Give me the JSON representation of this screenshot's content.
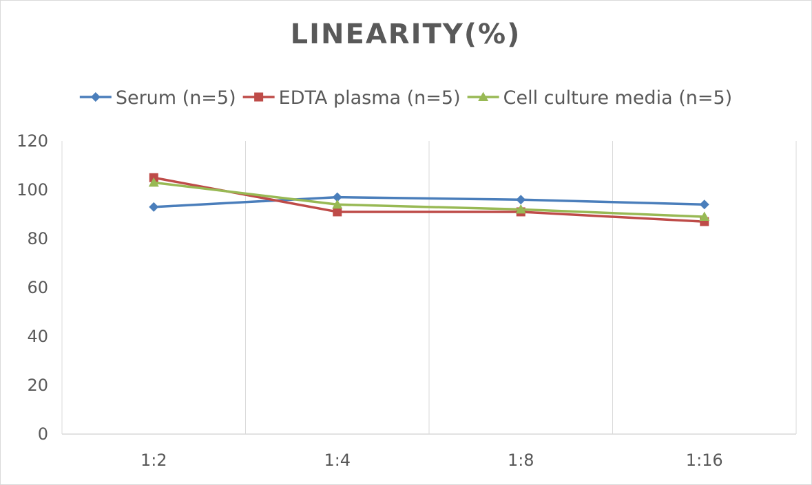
{
  "chart_data": {
    "type": "line",
    "title": "LINEARITY(%)",
    "xlabel": "",
    "ylabel": "",
    "categories": [
      "1:2",
      "1:4",
      "1:8",
      "1:16"
    ],
    "ylim": [
      0,
      120
    ],
    "yticks": [
      0,
      20,
      40,
      60,
      80,
      100,
      120
    ],
    "grid": "vertical",
    "legend_position": "top",
    "series": [
      {
        "name": "Serum (n=5)",
        "values": [
          93,
          97,
          96,
          94
        ],
        "color": "#4a7ebb",
        "marker": "diamond"
      },
      {
        "name": "EDTA plasma (n=5)",
        "values": [
          105,
          91,
          91,
          87
        ],
        "color": "#be4b48",
        "marker": "square"
      },
      {
        "name": "Cell culture media (n=5)",
        "values": [
          103,
          94,
          92,
          89
        ],
        "color": "#98b954",
        "marker": "triangle"
      }
    ]
  }
}
